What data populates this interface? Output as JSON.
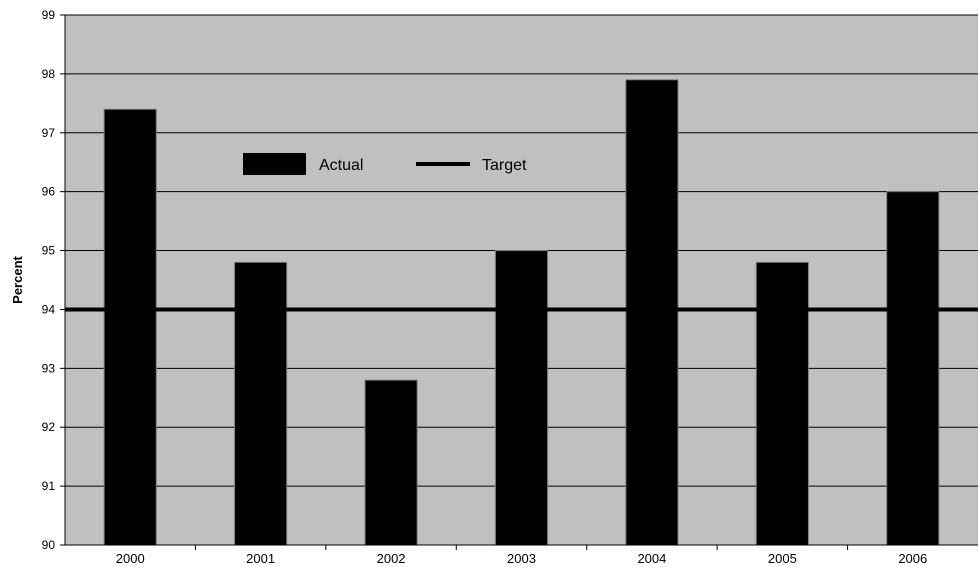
{
  "chart_data": {
    "type": "bar",
    "categories": [
      "2000",
      "2001",
      "2002",
      "2003",
      "2004",
      "2005",
      "2006"
    ],
    "series": [
      {
        "name": "Actual",
        "values": [
          97.4,
          94.8,
          92.8,
          95.0,
          97.9,
          94.8,
          96.0
        ]
      }
    ],
    "target": {
      "name": "Target",
      "value": 94
    },
    "title": "",
    "xlabel": "",
    "ylabel": "Percent",
    "ylim": [
      90,
      99
    ],
    "yticks": [
      90,
      91,
      92,
      93,
      94,
      95,
      96,
      97,
      98,
      99
    ],
    "grid": true,
    "legend_position": "top-left",
    "colors": {
      "plot_background": "#c0c0c0",
      "bar": "#000000",
      "bar_edge": "#808080",
      "target_line": "#000000",
      "gridline": "#000000"
    }
  }
}
